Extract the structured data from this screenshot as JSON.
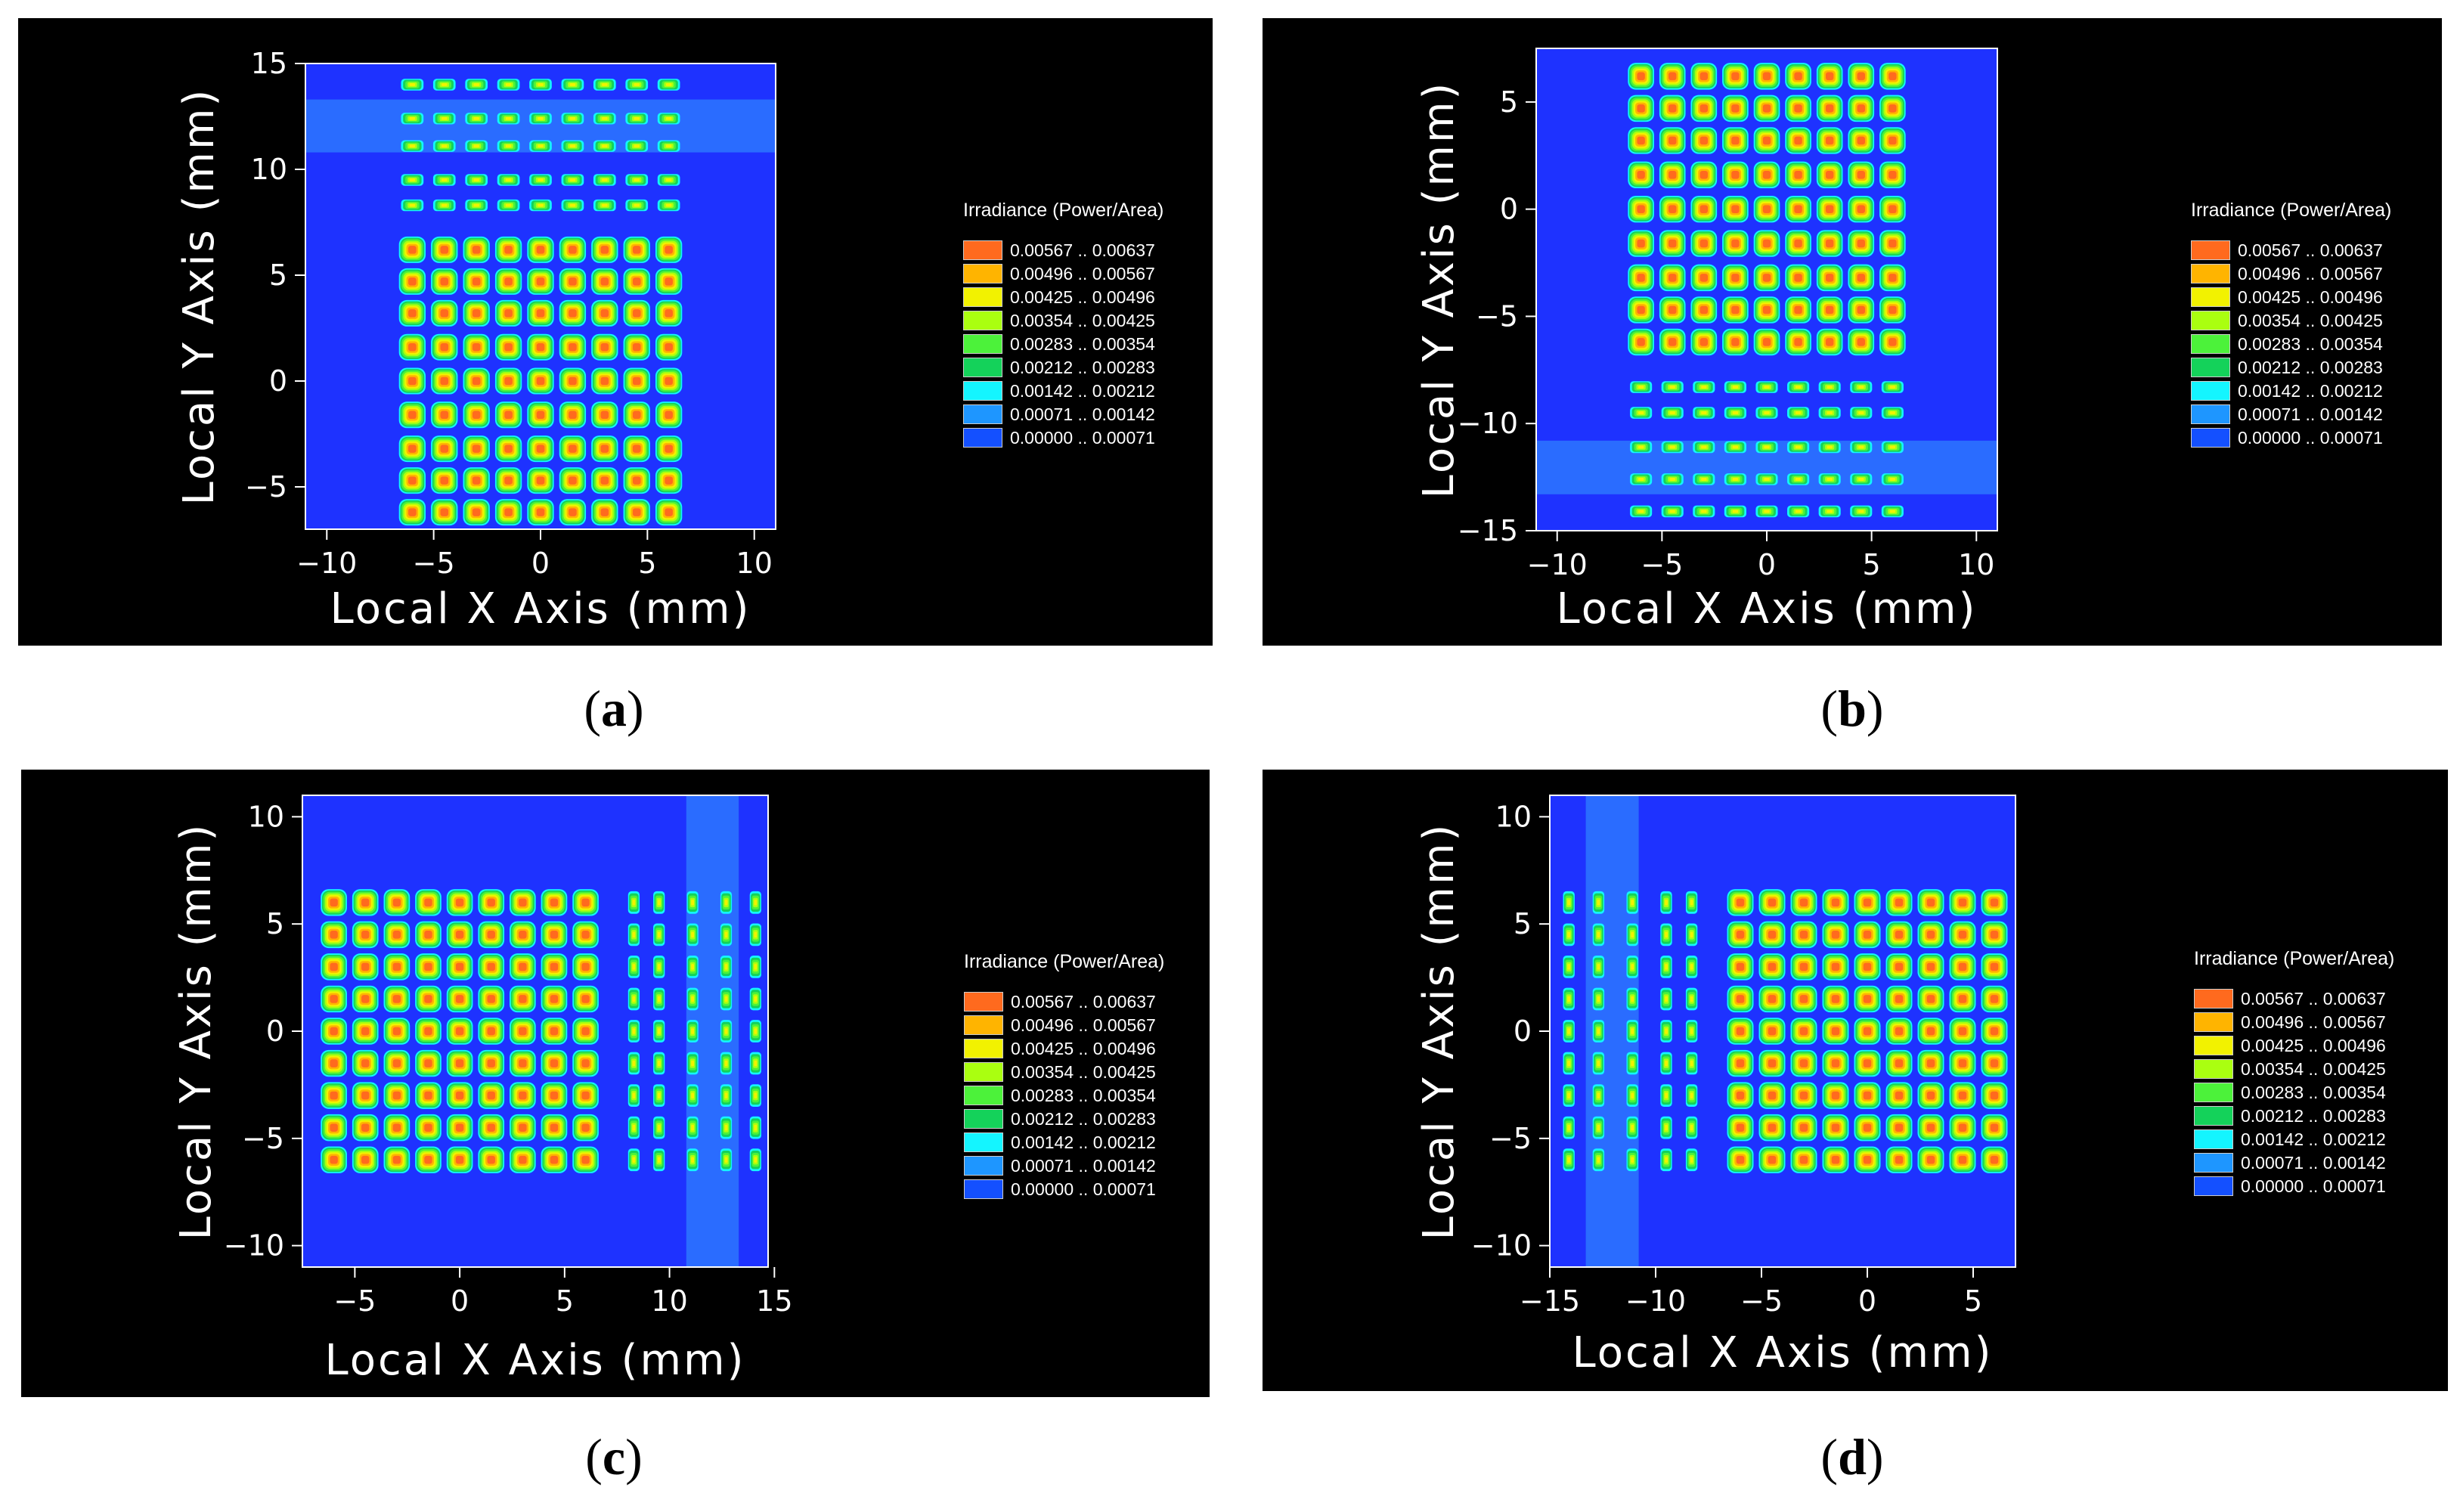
{
  "legend": {
    "title": "Irradiance (Power/Area)",
    "entries": [
      {
        "label": "0.00567 .. 0.00637",
        "color": "#ff6a1e"
      },
      {
        "label": "0.00496 .. 0.00567",
        "color": "#ffb400"
      },
      {
        "label": "0.00425 .. 0.00496",
        "color": "#f2f200"
      },
      {
        "label": "0.00354 .. 0.00425",
        "color": "#aaff10"
      },
      {
        "label": "0.00283 .. 0.00354",
        "color": "#4cf23a"
      },
      {
        "label": "0.00212 .. 0.00283",
        "color": "#14d25a"
      },
      {
        "label": "0.00142 .. 0.00212",
        "color": "#14f5ff"
      },
      {
        "label": "0.00071 .. 0.00142",
        "color": "#1e96ff"
      },
      {
        "label": "0.00000 .. 0.00071",
        "color": "#1450ff"
      }
    ]
  },
  "colors": {
    "background": "#1e32ff",
    "band": "#2a6cff",
    "frame": "#000000"
  },
  "chart_data": [
    {
      "id": "a",
      "caption": "a",
      "type": "heatmap",
      "title": "",
      "xlabel": "Local X Axis (mm)",
      "ylabel": "Local Y Axis (mm)",
      "xlim": [
        -11,
        11
      ],
      "ylim": [
        -7,
        15
      ],
      "xticks": [
        -10,
        -5,
        0,
        5,
        10
      ],
      "yticks": [
        -5,
        0,
        5,
        10,
        15
      ],
      "xtick_labels": [
        "−10",
        "−5",
        "0",
        "5",
        "10"
      ],
      "ytick_labels": [
        "−5",
        "0",
        "5",
        "10",
        "15"
      ],
      "spot_grid": {
        "x_centers": [
          -6.0,
          -4.5,
          -3.0,
          -1.5,
          0.0,
          1.5,
          3.0,
          4.5,
          6.0
        ],
        "y_centers": [
          -6.2,
          -4.7,
          -3.2,
          -1.6,
          0.0,
          1.6,
          3.2,
          4.7,
          6.2
        ],
        "peak_band": "0.00567 .. 0.00637"
      },
      "weak_rows_y": [
        9.5,
        8.3,
        11.1,
        12.4,
        14.0
      ],
      "band_regions": [
        {
          "axis": "y",
          "range": [
            10.8,
            13.3
          ]
        }
      ]
    },
    {
      "id": "b",
      "caption": "b",
      "type": "heatmap",
      "title": "",
      "xlabel": "Local X Axis (mm)",
      "ylabel": "Local Y Axis (mm)",
      "xlim": [
        -11,
        11
      ],
      "ylim": [
        -15,
        7.5
      ],
      "xticks": [
        -10,
        -5,
        0,
        5,
        10
      ],
      "yticks": [
        -15,
        -10,
        -5,
        0,
        5
      ],
      "xtick_labels": [
        "−10",
        "−5",
        "0",
        "5",
        "10"
      ],
      "ytick_labels": [
        "−15",
        "−10",
        "−5",
        "0",
        "5"
      ],
      "spot_grid": {
        "x_centers": [
          -6.0,
          -4.5,
          -3.0,
          -1.5,
          0.0,
          1.5,
          3.0,
          4.5,
          6.0
        ],
        "y_centers": [
          -6.2,
          -4.7,
          -3.2,
          -1.6,
          0.0,
          1.6,
          3.2,
          4.7,
          6.2
        ],
        "peak_band": "0.00567 .. 0.00637"
      },
      "weak_rows_y": [
        -8.3,
        -9.5,
        -11.1,
        -12.6,
        -14.1
      ],
      "band_regions": [
        {
          "axis": "y",
          "range": [
            -13.3,
            -10.8
          ]
        }
      ]
    },
    {
      "id": "c",
      "caption": "c",
      "type": "heatmap",
      "title": "",
      "xlabel": "Local X Axis (mm)",
      "ylabel": "Local Y Axis (mm)",
      "xlim": [
        -7.5,
        14.7
      ],
      "ylim": [
        -11,
        11
      ],
      "xticks": [
        -5,
        0,
        5,
        10,
        15
      ],
      "yticks": [
        -10,
        -5,
        0,
        5,
        10
      ],
      "xtick_labels": [
        "−5",
        "0",
        "5",
        "10",
        "15"
      ],
      "ytick_labels": [
        "−10",
        "−5",
        "0",
        "5",
        "10"
      ],
      "spot_grid": {
        "x_centers": [
          -6.0,
          -4.5,
          -3.0,
          -1.5,
          0.0,
          1.5,
          3.0,
          4.5,
          6.0
        ],
        "y_centers": [
          -6.0,
          -4.5,
          -3.0,
          -1.5,
          0.0,
          1.5,
          3.0,
          4.5,
          6.0
        ],
        "peak_band": "0.00567 .. 0.00637"
      },
      "weak_cols_x": [
        8.3,
        9.5,
        11.1,
        12.7,
        14.1
      ],
      "band_regions": [
        {
          "axis": "x",
          "range": [
            10.8,
            13.3
          ]
        }
      ]
    },
    {
      "id": "d",
      "caption": "d",
      "type": "heatmap",
      "title": "",
      "xlabel": "Local X Axis (mm)",
      "ylabel": "Local Y Axis (mm)",
      "xlim": [
        -15,
        7
      ],
      "ylim": [
        -11,
        11
      ],
      "xticks": [
        -15,
        -10,
        -5,
        0,
        5
      ],
      "yticks": [
        -10,
        -5,
        0,
        5,
        10
      ],
      "xtick_labels": [
        "−15",
        "−10",
        "−5",
        "0",
        "5"
      ],
      "ytick_labels": [
        "−10",
        "−5",
        "0",
        "5",
        "10"
      ],
      "spot_grid": {
        "x_centers": [
          -6.0,
          -4.5,
          -3.0,
          -1.5,
          0.0,
          1.5,
          3.0,
          4.5,
          6.0
        ],
        "y_centers": [
          -6.0,
          -4.5,
          -3.0,
          -1.5,
          0.0,
          1.5,
          3.0,
          4.5,
          6.0
        ],
        "peak_band": "0.00567 .. 0.00637"
      },
      "weak_cols_x": [
        -8.3,
        -9.5,
        -11.1,
        -12.7,
        -14.1
      ],
      "band_regions": [
        {
          "axis": "x",
          "range": [
            -13.3,
            -10.8
          ]
        }
      ]
    }
  ]
}
